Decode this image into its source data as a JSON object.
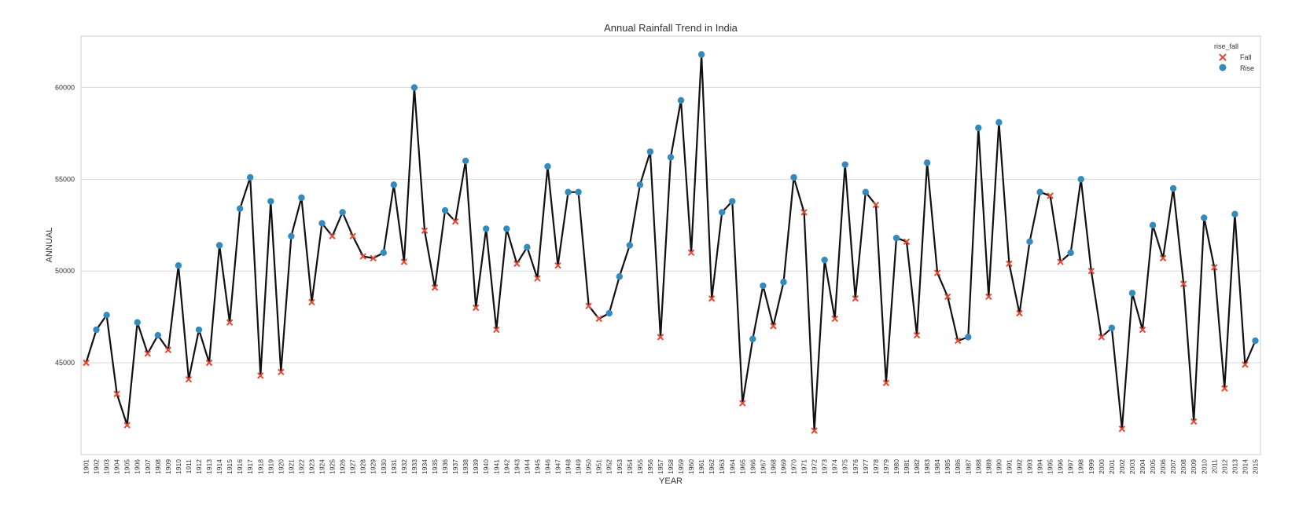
{
  "chart_data": {
    "type": "line",
    "title": "Annual Rainfall Trend in India",
    "xlabel": "YEAR",
    "ylabel": "ANNUAL",
    "ylim": [
      40000,
      62800
    ],
    "yticks": [
      45000,
      50000,
      55000,
      60000
    ],
    "ytick_labels": [
      "45000",
      "50000",
      "55000",
      "60000"
    ],
    "grid": "horizontal",
    "legend_position": "top-right",
    "legend": {
      "title": "rise_fall",
      "entries": [
        {
          "label": "Fall",
          "marker": "x",
          "color": "#e24a33"
        },
        {
          "label": "Rise",
          "marker": "circle",
          "color": "#348abd"
        }
      ]
    },
    "line_color": "#111111",
    "x": [
      1901,
      1902,
      1903,
      1904,
      1905,
      1906,
      1907,
      1908,
      1909,
      1910,
      1911,
      1912,
      1913,
      1914,
      1915,
      1916,
      1917,
      1918,
      1919,
      1920,
      1921,
      1922,
      1923,
      1924,
      1925,
      1926,
      1927,
      1928,
      1929,
      1930,
      1931,
      1932,
      1933,
      1934,
      1935,
      1936,
      1937,
      1938,
      1939,
      1940,
      1941,
      1942,
      1943,
      1944,
      1945,
      1946,
      1947,
      1948,
      1949,
      1950,
      1951,
      1952,
      1953,
      1954,
      1955,
      1956,
      1957,
      1958,
      1959,
      1960,
      1961,
      1962,
      1963,
      1964,
      1965,
      1966,
      1967,
      1968,
      1969,
      1970,
      1971,
      1972,
      1973,
      1974,
      1975,
      1976,
      1977,
      1978,
      1979,
      1980,
      1981,
      1982,
      1983,
      1984,
      1985,
      1986,
      1987,
      1988,
      1989,
      1990,
      1991,
      1992,
      1993,
      1994,
      1995,
      1996,
      1997,
      1998,
      1999,
      2000,
      2001,
      2002,
      2003,
      2004,
      2005,
      2006,
      2007,
      2008,
      2009,
      2010,
      2011,
      2012,
      2013,
      2014,
      2015
    ],
    "values": [
      45000,
      46800,
      47600,
      43300,
      41600,
      47200,
      45500,
      46500,
      45700,
      50300,
      44100,
      46800,
      45000,
      51400,
      47200,
      53400,
      55100,
      44300,
      53800,
      44500,
      51900,
      54000,
      48300,
      52600,
      51900,
      53200,
      51900,
      50800,
      50700,
      51000,
      54700,
      50500,
      60000,
      52200,
      49100,
      53300,
      52700,
      56000,
      48000,
      52300,
      46800,
      52300,
      50400,
      51300,
      49600,
      55700,
      50300,
      54300,
      54300,
      48100,
      47400,
      47700,
      49700,
      51400,
      54700,
      56500,
      46400,
      56200,
      59300,
      51000,
      61800,
      48500,
      53200,
      53800,
      42800,
      46300,
      49200,
      47000,
      49400,
      55100,
      53200,
      41300,
      50600,
      47400,
      55800,
      48500,
      54300,
      53600,
      43900,
      51800,
      51600,
      46500,
      55900,
      49900,
      48600,
      46200,
      46400,
      57800,
      48600,
      58100,
      50400,
      47700,
      51600,
      54300,
      54100,
      50500,
      51000,
      55000,
      50000,
      46400,
      46900,
      41400,
      48800,
      46800,
      52500,
      50700,
      54500,
      49300,
      41800,
      52900,
      50200,
      43600,
      53100,
      44900,
      46200
    ],
    "rise_fall": [
      "Fall",
      "Rise",
      "Rise",
      "Fall",
      "Fall",
      "Rise",
      "Fall",
      "Rise",
      "Fall",
      "Rise",
      "Fall",
      "Rise",
      "Fall",
      "Rise",
      "Fall",
      "Rise",
      "Rise",
      "Fall",
      "Rise",
      "Fall",
      "Rise",
      "Rise",
      "Fall",
      "Rise",
      "Fall",
      "Rise",
      "Fall",
      "Fall",
      "Fall",
      "Rise",
      "Rise",
      "Fall",
      "Rise",
      "Fall",
      "Fall",
      "Rise",
      "Fall",
      "Rise",
      "Fall",
      "Rise",
      "Fall",
      "Rise",
      "Fall",
      "Rise",
      "Fall",
      "Rise",
      "Fall",
      "Rise",
      "Rise",
      "Fall",
      "Fall",
      "Rise",
      "Rise",
      "Rise",
      "Rise",
      "Rise",
      "Fall",
      "Rise",
      "Rise",
      "Fall",
      "Rise",
      "Fall",
      "Rise",
      "Rise",
      "Fall",
      "Rise",
      "Rise",
      "Fall",
      "Rise",
      "Rise",
      "Fall",
      "Fall",
      "Rise",
      "Fall",
      "Rise",
      "Fall",
      "Rise",
      "Fall",
      "Fall",
      "Rise",
      "Fall",
      "Fall",
      "Rise",
      "Fall",
      "Fall",
      "Fall",
      "Rise",
      "Rise",
      "Fall",
      "Rise",
      "Fall",
      "Fall",
      "Rise",
      "Rise",
      "Fall",
      "Fall",
      "Rise",
      "Rise",
      "Fall",
      "Fall",
      "Rise",
      "Fall",
      "Rise",
      "Fall",
      "Rise",
      "Fall",
      "Rise",
      "Fall",
      "Fall",
      "Rise",
      "Fall",
      "Fall",
      "Rise",
      "Fall",
      "Rise"
    ]
  }
}
